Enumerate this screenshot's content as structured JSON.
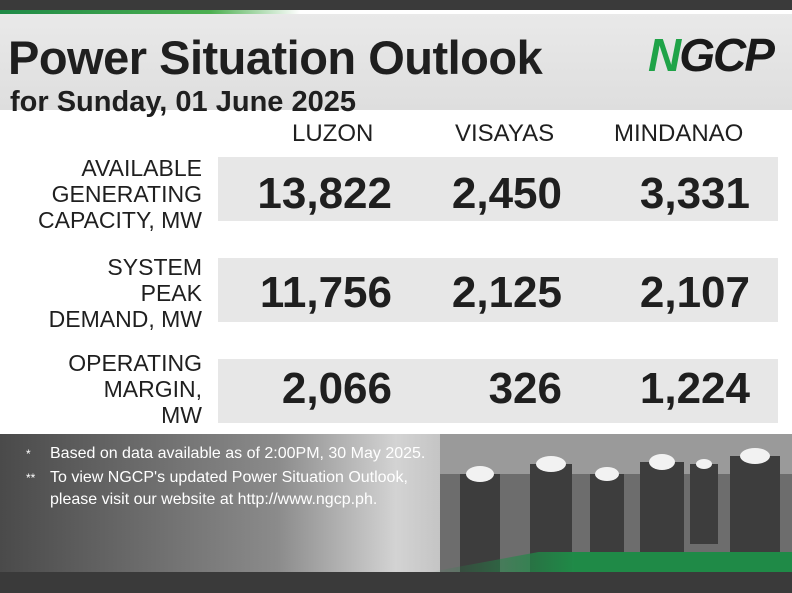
{
  "header": {
    "title": "Power Situation Outlook",
    "subtitle": "for Sunday, 01 June 2025",
    "logo_text": "NGCP"
  },
  "columns": [
    "LUZON",
    "VISAYAS",
    "MINDANAO"
  ],
  "rows": [
    {
      "label_lines": [
        "AVAILABLE",
        "GENERATING",
        "CAPACITY, MW"
      ],
      "values": [
        "13,822",
        "2,450",
        "3,331"
      ]
    },
    {
      "label_lines": [
        "SYSTEM",
        "PEAK",
        "DEMAND, MW"
      ],
      "values": [
        "11,756",
        "2,125",
        "2,107"
      ]
    },
    {
      "label_lines": [
        "OPERATING",
        "MARGIN,",
        "MW"
      ],
      "values": [
        "2,066",
        "326",
        "1,224"
      ]
    }
  ],
  "notes": [
    {
      "mark": "*",
      "text": "Based on data available as of 2:00PM, 30 May 2025."
    },
    {
      "mark": "**",
      "text": "To view NGCP's updated Power Situation Outlook, please visit our website at http://www.ngcp.ph."
    }
  ],
  "colors": {
    "accent_green": "#1f8a47",
    "dark_bar": "#3a3a3a",
    "band_gray": "#e7e7e7"
  }
}
